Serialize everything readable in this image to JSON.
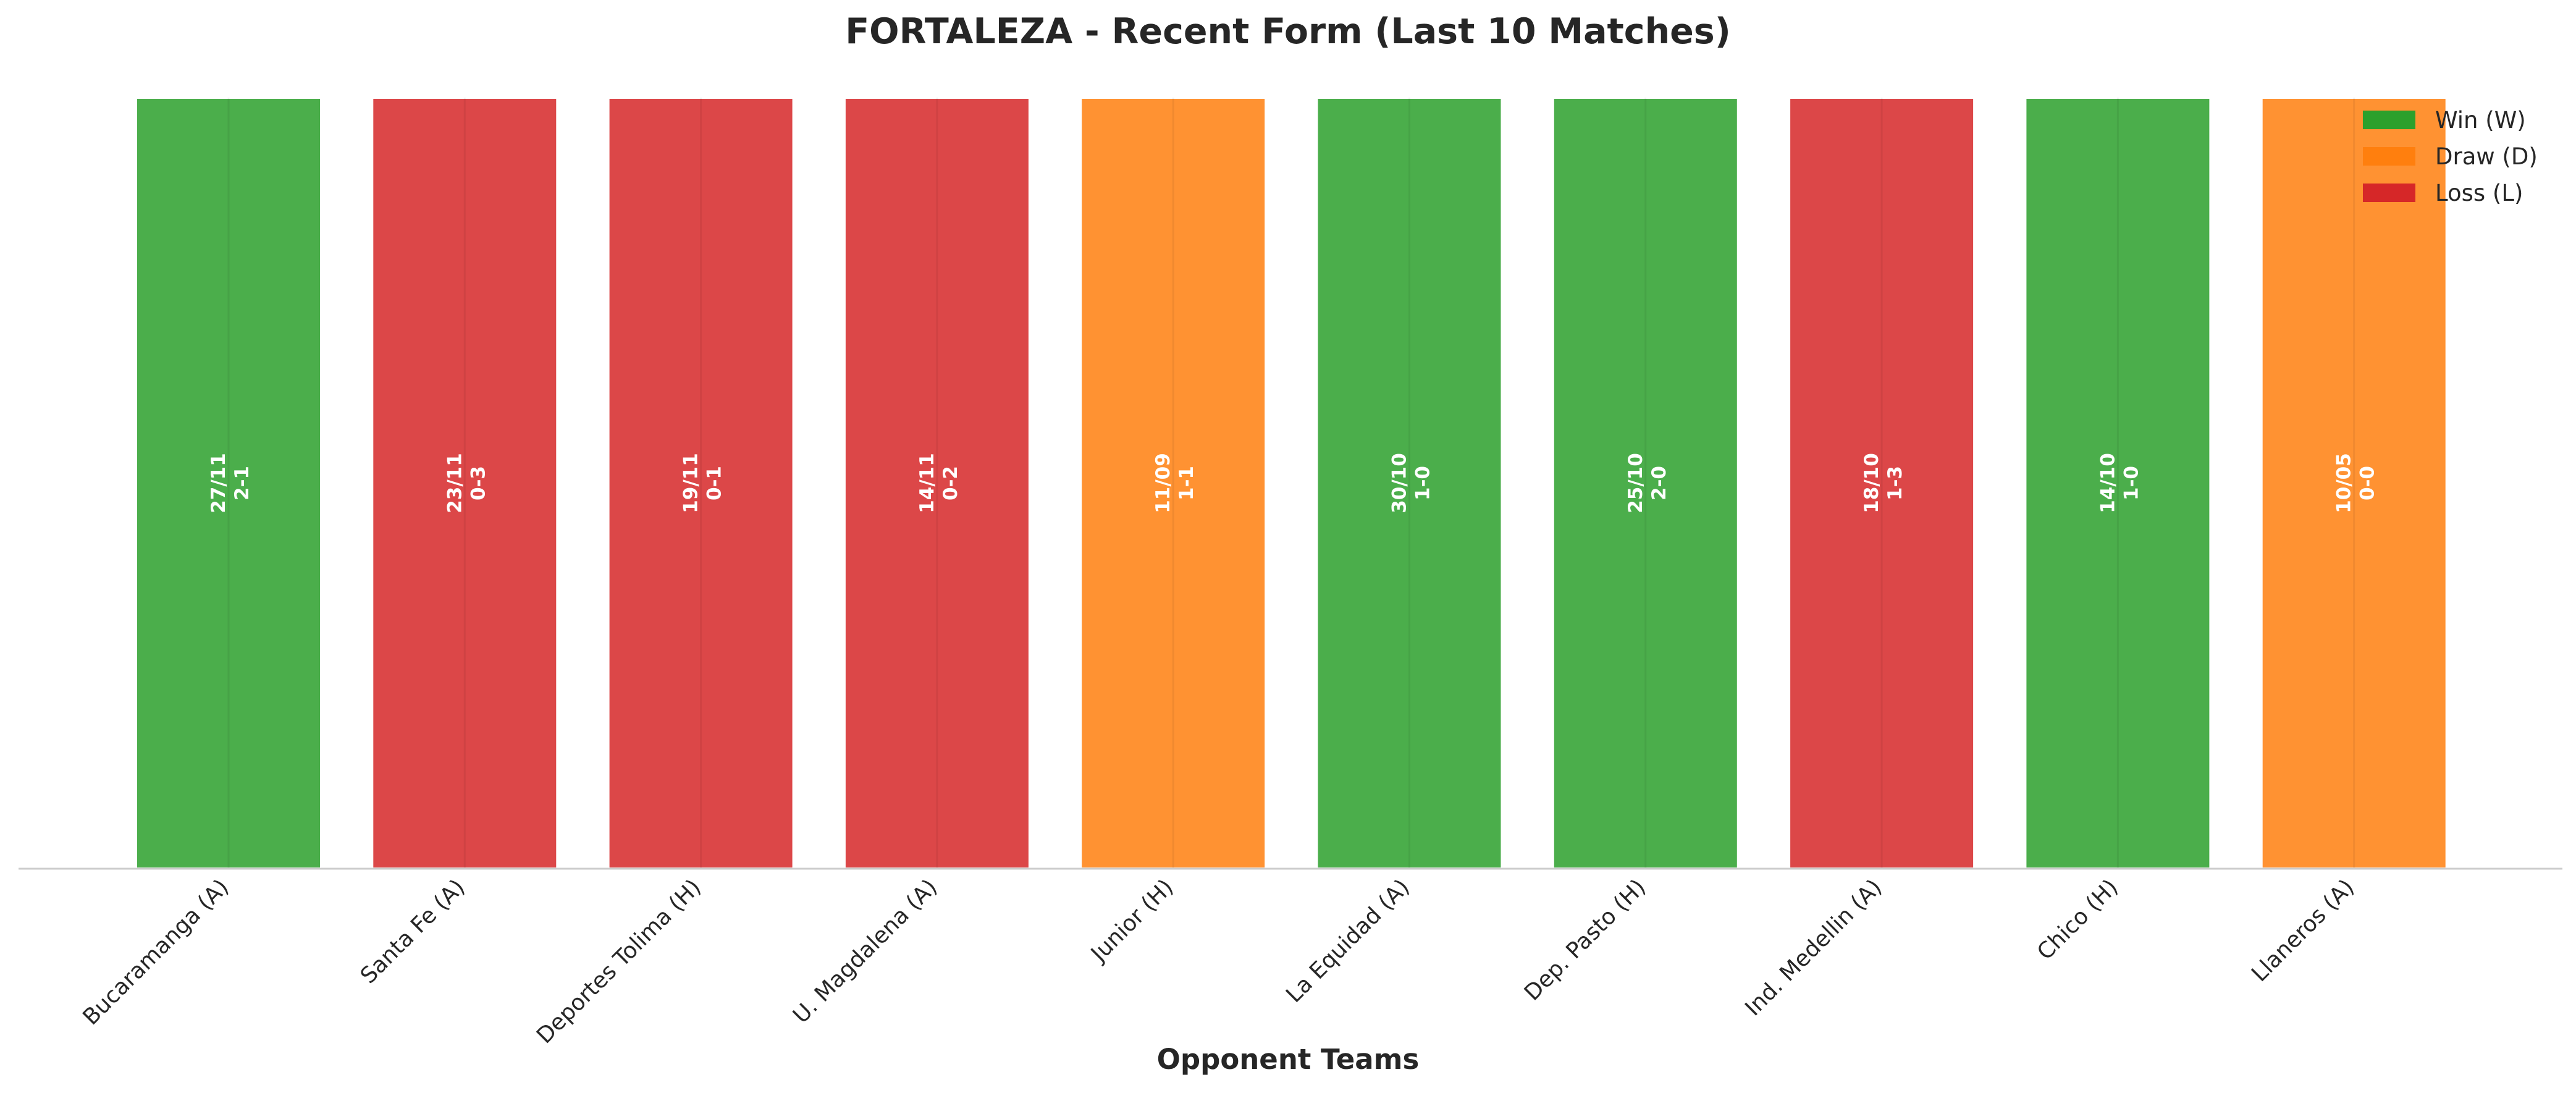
{
  "chart_data": {
    "type": "bar",
    "title": "FORTALEZA - Recent Form (Last 10 Matches)",
    "xlabel": "Opponent Teams",
    "ylabel": "",
    "grid": false,
    "legend_position": "top-right",
    "categories": [
      "Bucaramanga (A)",
      "Santa Fe (A)",
      "Deportes Tolima (H)",
      "U. Magdalena (A)",
      "Junior (H)",
      "La Equidad (A)",
      "Dep. Pasto (H)",
      "Ind. Medellin (A)",
      "Chico (H)",
      "Llaneros (A)"
    ],
    "values": [
      1,
      1,
      1,
      1,
      1,
      1,
      1,
      1,
      1,
      1
    ],
    "results": [
      "W",
      "L",
      "L",
      "L",
      "D",
      "W",
      "W",
      "L",
      "W",
      "D"
    ],
    "dates": [
      "27/11",
      "23/11",
      "19/11",
      "14/11",
      "11/09",
      "30/10",
      "25/10",
      "18/10",
      "14/10",
      "10/05"
    ],
    "scores": [
      "2-1",
      "0-3",
      "0-1",
      "0-2",
      "1-1",
      "1-0",
      "2-0",
      "1-3",
      "1-0",
      "0-0"
    ],
    "legend": [
      {
        "key": "W",
        "label": "Win (W)",
        "color": "#2ca02c"
      },
      {
        "key": "D",
        "label": "Draw (D)",
        "color": "#ff7f0e"
      },
      {
        "key": "L",
        "label": "Loss (L)",
        "color": "#d62728"
      }
    ],
    "colors": {
      "W": "#2ca02c",
      "D": "#ff7f0e",
      "L": "#d62728"
    }
  }
}
